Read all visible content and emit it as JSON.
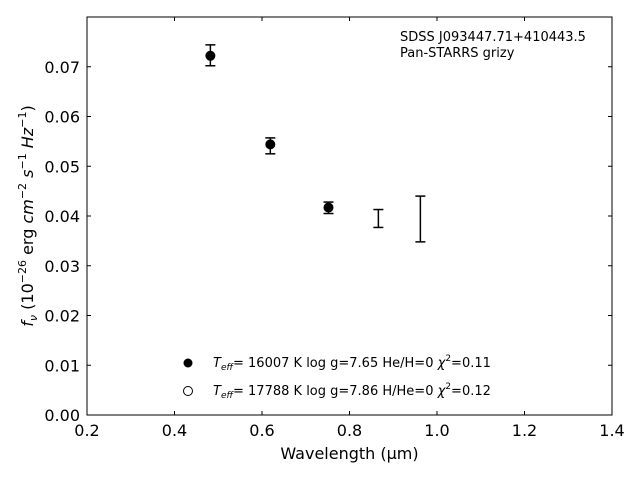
{
  "chart_data": {
    "type": "scatter",
    "annotation_lines": [
      "SDSS J093447.71+410443.5",
      "Pan-STARRS grizy"
    ],
    "xlabel": "Wavelength (μm)",
    "ylabel": "fν (10⁻²⁶ erg cm⁻² s⁻¹ Hz⁻¹)",
    "xlim": [
      0.2,
      1.4
    ],
    "ylim": [
      0.0,
      0.08
    ],
    "xticks": [
      0.2,
      0.4,
      0.6,
      0.8,
      1.0,
      1.2,
      1.4
    ],
    "xtick_labels": [
      "0.2",
      "0.4",
      "0.6",
      "0.8",
      "1.0",
      "1.2",
      "1.4"
    ],
    "yticks": [
      0.0,
      0.01,
      0.02,
      0.03,
      0.04,
      0.05,
      0.06,
      0.07
    ],
    "ytick_labels": [
      "0.00",
      "0.01",
      "0.02",
      "0.03",
      "0.04",
      "0.05",
      "0.06",
      "0.07"
    ],
    "grid": false,
    "legend_position": "lower-center",
    "observed": [
      {
        "x": 0.482,
        "y_low": 0.0702,
        "y_high": 0.0744
      },
      {
        "x": 0.619,
        "y_low": 0.0525,
        "y_high": 0.0557
      },
      {
        "x": 0.752,
        "y_low": 0.0405,
        "y_high": 0.0428
      },
      {
        "x": 0.866,
        "y_low": 0.0377,
        "y_high": 0.0413
      },
      {
        "x": 0.962,
        "y_low": 0.0348,
        "y_high": 0.044
      }
    ],
    "series": [
      {
        "marker": "filled-circle",
        "label": "T_eff= 16007 K  log g=7.65  He/H=0  χ²=0.11",
        "points": [
          {
            "x": 0.482,
            "y": 0.0722
          },
          {
            "x": 0.619,
            "y": 0.0544
          },
          {
            "x": 0.752,
            "y": 0.0417
          }
        ]
      },
      {
        "marker": "open-circle",
        "label": "T_eff= 17788 K  log g=7.86  H/He=0  χ²=0.12",
        "points": []
      }
    ],
    "legend": [
      {
        "marker": "filled-circle",
        "teff_value": "= 16007 K",
        "logg": "log g=7.65",
        "comp": "He/H=0",
        "chi_value": "=0.11"
      },
      {
        "marker": "open-circle",
        "teff_value": "= 17788 K",
        "logg": "log g=7.86",
        "comp": "H/He=0",
        "chi_value": "=0.12"
      }
    ],
    "colors": {
      "marker": "#000000",
      "axis": "#000000",
      "background": "#ffffff"
    }
  }
}
